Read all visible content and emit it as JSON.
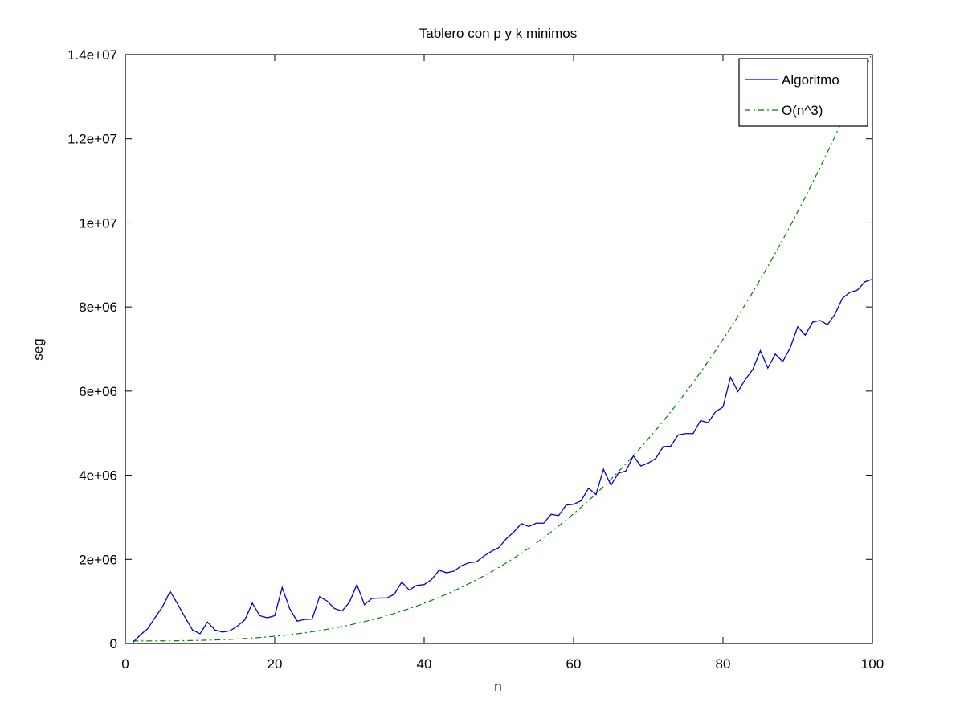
{
  "chart_data": {
    "type": "line",
    "title": "Tablero con p y k minimos",
    "xlabel": "n",
    "ylabel": "seg",
    "xlim": [
      0,
      100
    ],
    "ylim": [
      0,
      14000000
    ],
    "xticks": [
      0,
      20,
      40,
      60,
      80,
      100
    ],
    "xtick_labels": [
      "0",
      "20",
      "40",
      "60",
      "80",
      "100"
    ],
    "yticks": [
      0,
      2000000,
      4000000,
      6000000,
      8000000,
      10000000,
      12000000,
      14000000
    ],
    "ytick_labels": [
      "0",
      "2e+06",
      "4e+06",
      "6e+06",
      "8e+06",
      "1e+07",
      "1.2e+07",
      "1.4e+07"
    ],
    "grid": false,
    "legend": {
      "placement": "top-right"
    },
    "series": [
      {
        "name": "Algoritmo",
        "color": "#0000cc",
        "style": "solid",
        "x": [
          1,
          2,
          3,
          4,
          5,
          6,
          7,
          8,
          9,
          10,
          11,
          12,
          13,
          14,
          15,
          16,
          17,
          18,
          19,
          20,
          21,
          22,
          23,
          24,
          25,
          26,
          27,
          28,
          29,
          30,
          31,
          32,
          33,
          34,
          35,
          36,
          37,
          38,
          39,
          40,
          41,
          42,
          43,
          44,
          45,
          46,
          47,
          48,
          49,
          50,
          51,
          52,
          53,
          54,
          55,
          56,
          57,
          58,
          59,
          60,
          61,
          62,
          63,
          64,
          65,
          66,
          67,
          68,
          69,
          70,
          71,
          72,
          73,
          74,
          75,
          76,
          77,
          78,
          79,
          80,
          81,
          82,
          83,
          84,
          85,
          86,
          87,
          88,
          89,
          90,
          91,
          92,
          93,
          94,
          95,
          96,
          97,
          98,
          99,
          100
        ],
        "values": [
          20000,
          200000,
          350000,
          620000,
          880000,
          1240000,
          940000,
          620000,
          320000,
          230000,
          510000,
          320000,
          270000,
          300000,
          410000,
          560000,
          960000,
          660000,
          610000,
          660000,
          1330000,
          830000,
          530000,
          570000,
          580000,
          1110000,
          1010000,
          830000,
          770000,
          980000,
          1400000,
          920000,
          1070000,
          1080000,
          1080000,
          1170000,
          1460000,
          1270000,
          1380000,
          1400000,
          1520000,
          1740000,
          1680000,
          1720000,
          1850000,
          1920000,
          1940000,
          2080000,
          2190000,
          2280000,
          2490000,
          2650000,
          2850000,
          2780000,
          2860000,
          2860000,
          3070000,
          3040000,
          3290000,
          3310000,
          3390000,
          3690000,
          3540000,
          4140000,
          3760000,
          4050000,
          4100000,
          4460000,
          4220000,
          4290000,
          4400000,
          4680000,
          4690000,
          4960000,
          4990000,
          4990000,
          5300000,
          5250000,
          5510000,
          5620000,
          6330000,
          5990000,
          6280000,
          6520000,
          6960000,
          6550000,
          6880000,
          6700000,
          7030000,
          7530000,
          7330000,
          7640000,
          7680000,
          7580000,
          7830000,
          8210000,
          8350000,
          8400000,
          8600000,
          8660000
        ]
      },
      {
        "name": "O(n^3)",
        "color": "#007f00",
        "style": "dash-dot",
        "formula_coefficient": 14,
        "formula_offset": 60000
      }
    ]
  }
}
